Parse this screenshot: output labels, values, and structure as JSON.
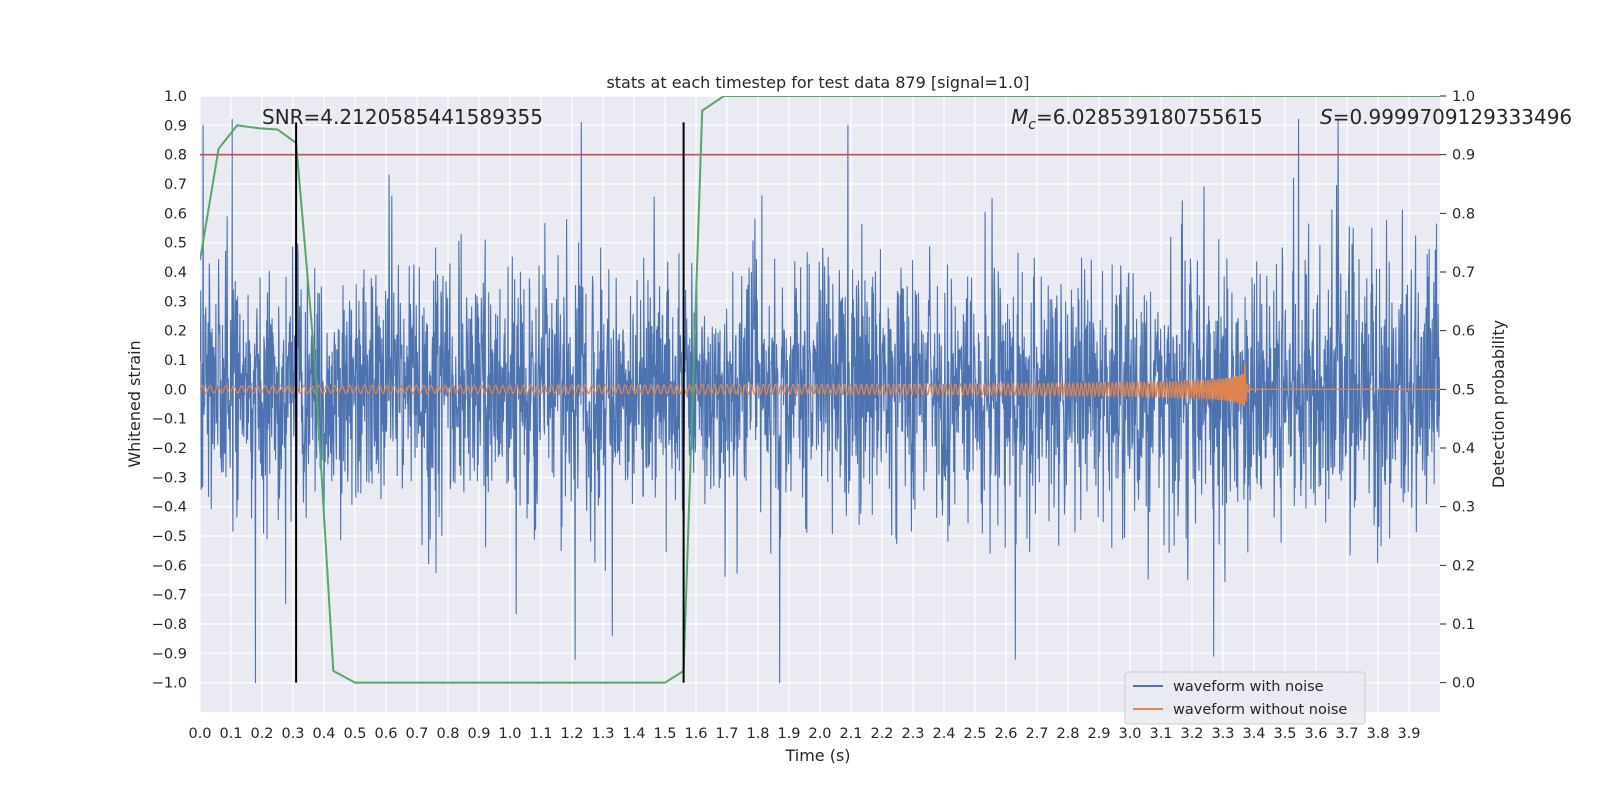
{
  "chart_data": {
    "type": "line",
    "title": "stats at each timestep for test data 879 [signal=1.0]",
    "xlabel": "Time (s)",
    "ylabel": "Whitened strain",
    "y2label": "Detection probability",
    "xlim": [
      0.0,
      4.0
    ],
    "ylim": [
      -1.1,
      1.0
    ],
    "y2lim": [
      -0.05,
      1.0
    ],
    "x_ticks": [
      "0.0",
      "0.1",
      "0.2",
      "0.3",
      "0.4",
      "0.5",
      "0.6",
      "0.7",
      "0.8",
      "0.9",
      "1.0",
      "1.1",
      "1.2",
      "1.3",
      "1.4",
      "1.5",
      "1.6",
      "1.7",
      "1.8",
      "1.9",
      "2.0",
      "2.1",
      "2.2",
      "2.3",
      "2.4",
      "2.5",
      "2.6",
      "2.7",
      "2.8",
      "2.9",
      "3.0",
      "3.1",
      "3.2",
      "3.3",
      "3.4",
      "3.5",
      "3.6",
      "3.7",
      "3.8",
      "3.9"
    ],
    "y_ticks": [
      "1.0",
      "0.9",
      "0.8",
      "0.7",
      "0.6",
      "0.5",
      "0.4",
      "0.3",
      "0.2",
      "0.1",
      "0.0",
      "−0.1",
      "−0.2",
      "−0.3",
      "−0.4",
      "−0.5",
      "−0.6",
      "−0.7",
      "−0.8",
      "−0.9",
      "−1.0"
    ],
    "y2_ticks": [
      "1.0",
      "0.9",
      "0.8",
      "0.7",
      "0.6",
      "0.5",
      "0.4",
      "0.3",
      "0.2",
      "0.1",
      "0.0"
    ],
    "grid": true,
    "legend_position": "bottom-right",
    "annotations": {
      "snr": "SNR=4.2120585441589355",
      "mc_symbol": "M",
      "mc_sub": "c",
      "mc_value": "=6.028539180755615",
      "s_symbol": "S",
      "s_value": "=0.9999709129333496"
    },
    "threshold": 0.9,
    "vertical_markers": [
      0.31,
      1.56
    ],
    "series": [
      {
        "name": "waveform with noise",
        "color": "#4c72b0",
        "kind": "noise",
        "envelope": 0.3,
        "notable_peaks": [
          [
            0.01,
            0.9
          ],
          [
            1.23,
            0.91
          ],
          [
            2.09,
            0.9
          ],
          [
            1.87,
            -1.0
          ],
          [
            1.21,
            -0.92
          ],
          [
            2.63,
            -0.92
          ],
          [
            3.27,
            -0.91
          ]
        ]
      },
      {
        "name": "waveform without noise",
        "color": "#dd8452",
        "kind": "chirp",
        "t_merge": 3.37,
        "amp_start": 0.013,
        "amp_peak": 0.11
      },
      {
        "name": "detection probability",
        "color": "#55a868",
        "axis": "right",
        "x": [
          0.0,
          0.06,
          0.12,
          0.19,
          0.25,
          0.31,
          0.37,
          0.43,
          0.5,
          1.5,
          1.56,
          1.62,
          1.69,
          4.0
        ],
        "y": [
          0.72,
          0.91,
          0.95,
          0.945,
          0.943,
          0.92,
          0.55,
          0.02,
          0.0,
          0.0,
          0.02,
          0.975,
          1.0,
          1.0
        ]
      }
    ]
  }
}
